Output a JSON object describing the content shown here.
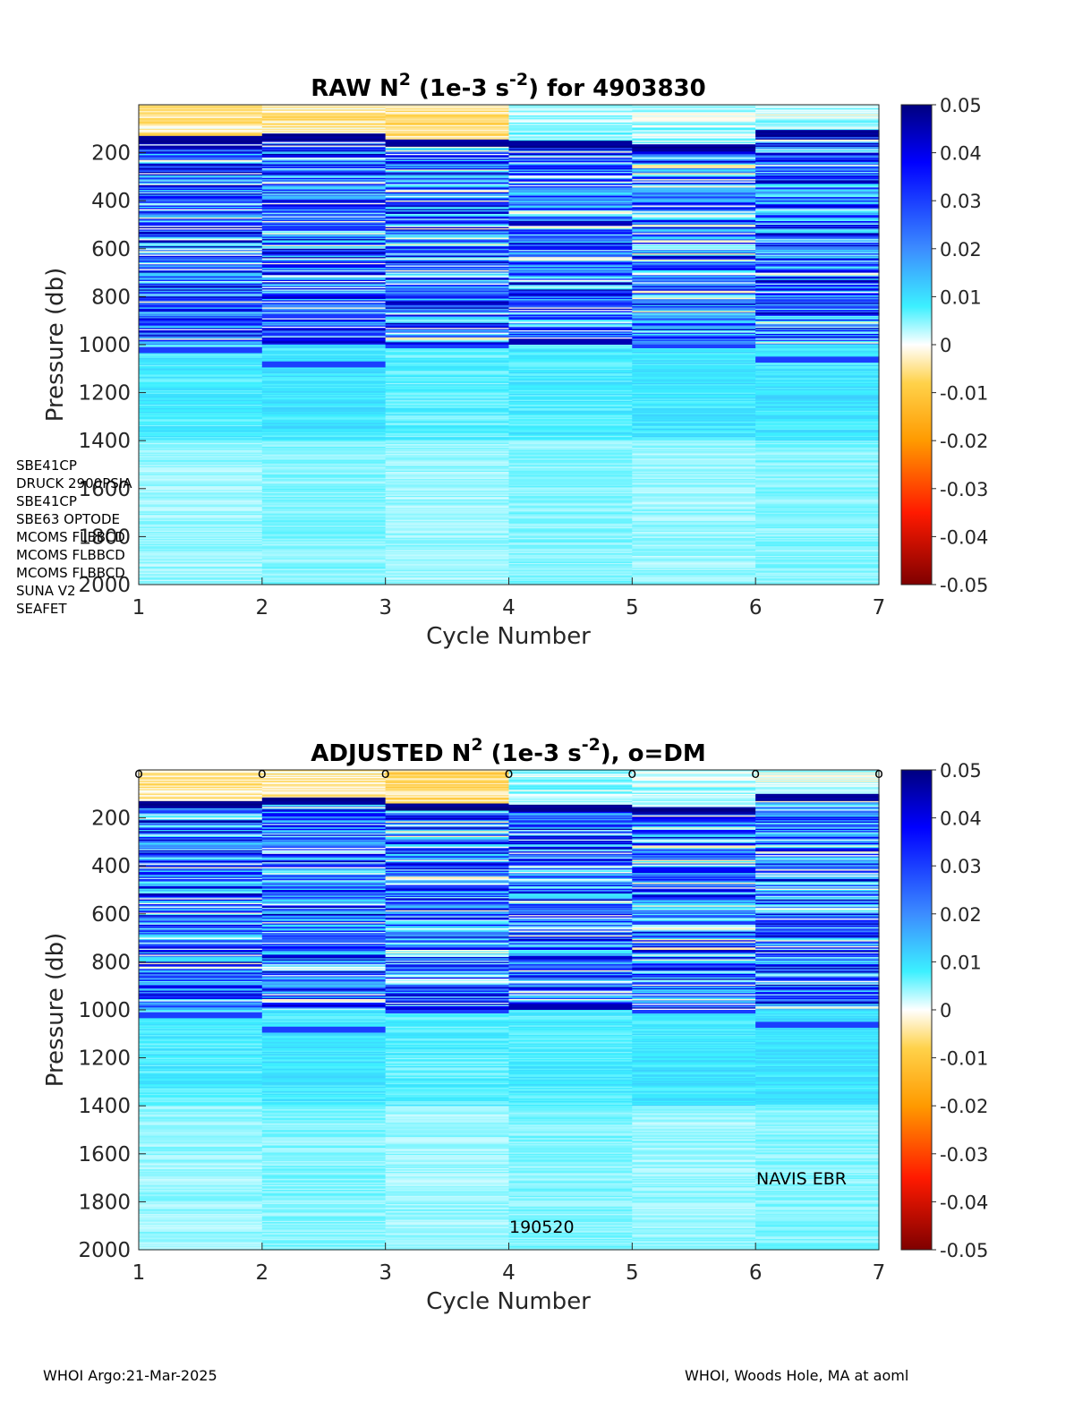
{
  "charts": [
    {
      "title_main": "RAW N",
      "title_sup1": "2",
      "title_mid": " (1e-3 s",
      "title_sup2": "-2",
      "title_end": ") for 4903830",
      "xlabel": "Cycle Number",
      "ylabel": "Pressure (db)",
      "xticks": [
        "1",
        "2",
        "3",
        "4",
        "5",
        "6",
        "7"
      ],
      "yticks": [
        "200",
        "400",
        "600",
        "800",
        "1000",
        "1200",
        "1400",
        "1600",
        "1800",
        "2000"
      ],
      "colorbar_ticks": [
        "0.05",
        "0.04",
        "0.03",
        "0.02",
        "0.01",
        "0",
        "-0.01",
        "-0.02",
        "-0.03",
        "-0.04",
        "-0.05"
      ]
    },
    {
      "title_main": "ADJUSTED N",
      "title_sup1": "2",
      "title_mid": " (1e-3 s",
      "title_sup2": "-2",
      "title_end": "), o=DM",
      "xlabel": "Cycle Number",
      "ylabel": "Pressure (db)",
      "xticks": [
        "1",
        "2",
        "3",
        "4",
        "5",
        "6",
        "7"
      ],
      "yticks": [
        "200",
        "400",
        "600",
        "800",
        "1000",
        "1200",
        "1400",
        "1600",
        "1800",
        "2000"
      ],
      "colorbar_ticks": [
        "0.05",
        "0.04",
        "0.03",
        "0.02",
        "0.01",
        "0",
        "-0.01",
        "-0.02",
        "-0.03",
        "-0.04",
        "-0.05"
      ],
      "dm_marker": "o",
      "dm_cycles": [
        1,
        2,
        3,
        4,
        5,
        6,
        7
      ]
    }
  ],
  "sensors": [
    "SBE41CP",
    "DRUCK 2900PSIA",
    "SBE41CP",
    "SBE63 OPTODE",
    "MCOMS FLBBCD",
    "MCOMS FLBBCD",
    "MCOMS FLBBCD",
    "SUNA V2",
    "SEAFET"
  ],
  "annotations": {
    "float_type": "NAVIS EBR",
    "deploy_id": "190520"
  },
  "footer": {
    "left": "WHOI Argo:21-Mar-2025",
    "right": "WHOI, Woods Hole, MA at aoml"
  },
  "chart_data": [
    {
      "type": "heatmap",
      "title": "RAW N2 (1e-3 s-2) for 4903830",
      "xlabel": "Cycle Number",
      "ylabel": "Pressure (db)",
      "x": [
        1,
        2,
        3,
        4,
        5,
        6
      ],
      "xlim": [
        1,
        7
      ],
      "ylim": [
        0,
        2000
      ],
      "y_reversed": true,
      "clim": [
        -0.05,
        0.05
      ],
      "colormap": "blue-cyan-white-yellow-red (diverging)",
      "colorbar": "right",
      "mixed_layer_top_pressure": [
        140,
        130,
        155,
        160,
        175,
        115
      ],
      "deep_band_pressure": [
        1020,
        1080,
        1000,
        985,
        1000,
        1060
      ],
      "values_by_layer": [
        {
          "layer": "0-150 db",
          "values": [
            -0.004,
            -0.004,
            -0.006,
            0.004,
            0.003,
            0.002
          ]
        },
        {
          "layer": "150-1000 db",
          "values": [
            0.022,
            0.022,
            0.021,
            0.022,
            0.02,
            0.022
          ]
        },
        {
          "layer": "1000-1400 db",
          "values": [
            0.008,
            0.009,
            0.007,
            0.008,
            0.009,
            0.009
          ]
        },
        {
          "layer": "1400-2000 db",
          "values": [
            0.004,
            0.005,
            0.004,
            0.005,
            0.004,
            0.005
          ]
        }
      ]
    },
    {
      "type": "heatmap",
      "title": "ADJUSTED N2 (1e-3 s-2), o=DM",
      "xlabel": "Cycle Number",
      "ylabel": "Pressure (db)",
      "x": [
        1,
        2,
        3,
        4,
        5,
        6
      ],
      "xlim": [
        1,
        7
      ],
      "ylim": [
        0,
        2000
      ],
      "y_reversed": true,
      "clim": [
        -0.05,
        0.05
      ],
      "colormap": "blue-cyan-white-yellow-red (diverging)",
      "colorbar": "right",
      "mixed_layer_top_pressure": [
        140,
        125,
        150,
        155,
        165,
        110
      ],
      "deep_band_pressure": [
        1020,
        1080,
        1000,
        985,
        1000,
        1060
      ],
      "values_by_layer": [
        {
          "layer": "0-150 db",
          "values": [
            -0.004,
            -0.004,
            -0.006,
            0.004,
            0.003,
            0.002
          ]
        },
        {
          "layer": "150-1000 db",
          "values": [
            0.022,
            0.022,
            0.021,
            0.022,
            0.02,
            0.022
          ]
        },
        {
          "layer": "1000-1400 db",
          "values": [
            0.008,
            0.009,
            0.007,
            0.008,
            0.009,
            0.009
          ]
        },
        {
          "layer": "1400-2000 db",
          "values": [
            0.004,
            0.005,
            0.004,
            0.005,
            0.004,
            0.005
          ]
        }
      ]
    }
  ]
}
